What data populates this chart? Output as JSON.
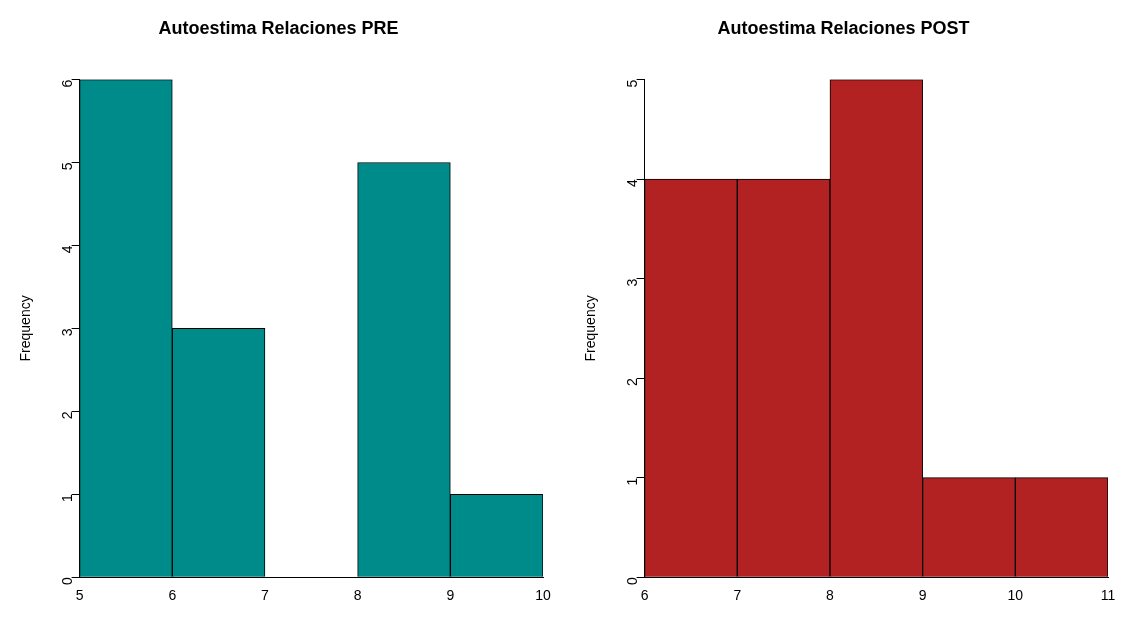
{
  "chart_data": [
    {
      "type": "histogram",
      "title": "Autoestima Relaciones PRE",
      "ylabel": "Frequency",
      "bins": [
        5,
        6,
        7,
        8,
        9,
        10
      ],
      "values": [
        6,
        3,
        0,
        5,
        1
      ],
      "color": "#008b8b",
      "xlim": [
        5,
        10
      ],
      "ylim": [
        0,
        6
      ],
      "xticks": [
        5,
        6,
        7,
        8,
        9,
        10
      ],
      "yticks": [
        0,
        1,
        2,
        3,
        4,
        5,
        6
      ]
    },
    {
      "type": "histogram",
      "title": "Autoestima Relaciones POST",
      "ylabel": "Frequency",
      "bins": [
        6,
        7,
        8,
        9,
        10,
        11
      ],
      "values": [
        4,
        4,
        5,
        1,
        1
      ],
      "color": "#b22222",
      "xlim": [
        6,
        11
      ],
      "ylim": [
        0,
        5
      ],
      "xticks": [
        6,
        7,
        8,
        9,
        10,
        11
      ],
      "yticks": [
        0,
        1,
        2,
        3,
        4,
        5
      ]
    }
  ]
}
